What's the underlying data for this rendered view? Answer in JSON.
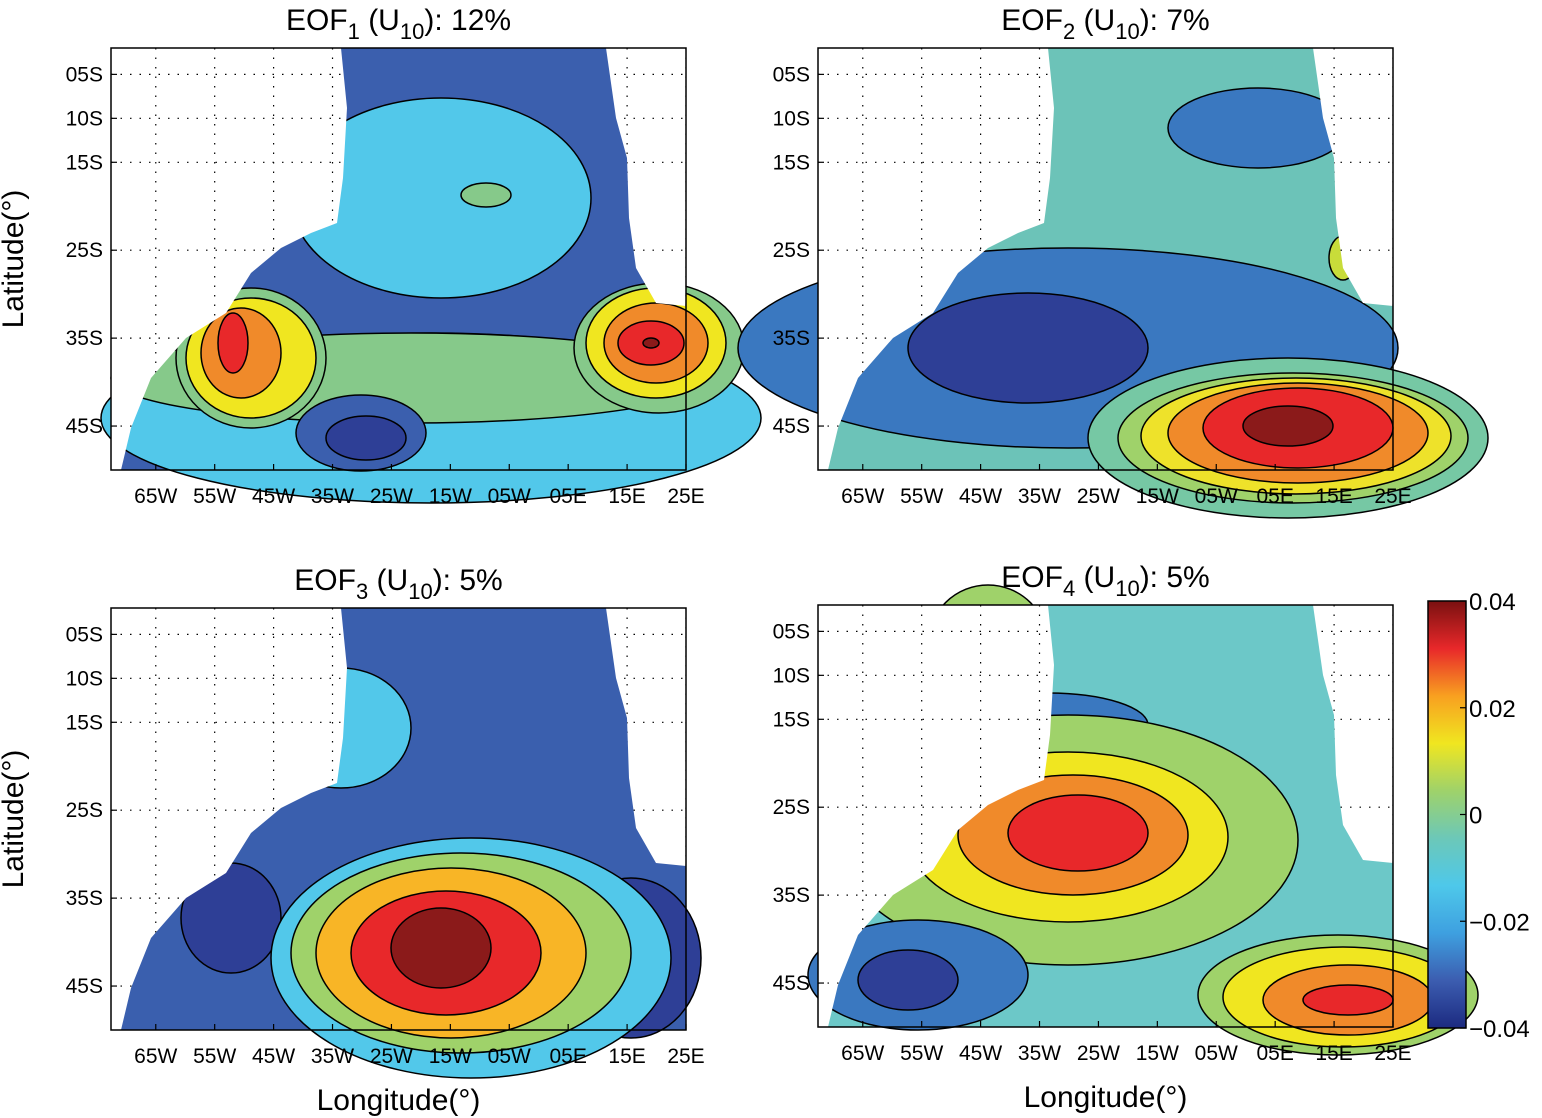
{
  "chart_data": [
    {
      "type": "contour",
      "title": [
        "EOF",
        "1",
        " (U",
        "10",
        "): 12%"
      ],
      "ylabel": "Latitude(°)",
      "xlim": [
        -72.6,
        25
      ],
      "ylim": [
        -2,
        -50
      ],
      "grid": true,
      "xticks": [
        {
          "value": -65,
          "label": "65W"
        },
        {
          "value": -55,
          "label": "55W"
        },
        {
          "value": -45,
          "label": "45W"
        },
        {
          "value": -35,
          "label": "35W"
        },
        {
          "value": -25,
          "label": "25W"
        },
        {
          "value": -15,
          "label": "15W"
        },
        {
          "value": -5,
          "label": "05W"
        },
        {
          "value": 5,
          "label": "05E"
        },
        {
          "value": 15,
          "label": "15E"
        },
        {
          "value": 25,
          "label": "25E"
        }
      ],
      "yticks": [
        {
          "value": -5,
          "label": "05S"
        },
        {
          "value": -10,
          "label": "10S"
        },
        {
          "value": -15,
          "label": "15S"
        },
        {
          "value": -25,
          "label": "25S"
        },
        {
          "value": -35,
          "label": "35S"
        },
        {
          "value": -45,
          "label": "45S"
        }
      ]
    },
    {
      "type": "contour",
      "title": [
        "EOF",
        "2",
        " (U",
        "10",
        "): 7%"
      ],
      "xlim": [
        -72.6,
        25
      ],
      "ylim": [
        -2,
        -50
      ],
      "grid": true,
      "xticks": [
        {
          "value": -65,
          "label": "65W"
        },
        {
          "value": -55,
          "label": "55W"
        },
        {
          "value": -45,
          "label": "45W"
        },
        {
          "value": -35,
          "label": "35W"
        },
        {
          "value": -25,
          "label": "25W"
        },
        {
          "value": -15,
          "label": "15W"
        },
        {
          "value": -5,
          "label": "05W"
        },
        {
          "value": 5,
          "label": "05E"
        },
        {
          "value": 15,
          "label": "15E"
        },
        {
          "value": 25,
          "label": "25E"
        }
      ],
      "yticks": [
        {
          "value": -5,
          "label": "05S"
        },
        {
          "value": -10,
          "label": "10S"
        },
        {
          "value": -15,
          "label": "15S"
        },
        {
          "value": -25,
          "label": "25S"
        },
        {
          "value": -35,
          "label": "35S"
        },
        {
          "value": -45,
          "label": "45S"
        }
      ]
    },
    {
      "type": "contour",
      "title": [
        "EOF",
        "3",
        " (U",
        "10",
        "): 5%"
      ],
      "ylabel": "Latitude(°)",
      "xlabel": "Longitude(°)",
      "xlim": [
        -72.6,
        25
      ],
      "ylim": [
        -2,
        -50
      ],
      "grid": true,
      "xticks": [
        {
          "value": -65,
          "label": "65W"
        },
        {
          "value": -55,
          "label": "55W"
        },
        {
          "value": -45,
          "label": "45W"
        },
        {
          "value": -35,
          "label": "35W"
        },
        {
          "value": -25,
          "label": "25W"
        },
        {
          "value": -15,
          "label": "15W"
        },
        {
          "value": -5,
          "label": "05W"
        },
        {
          "value": 5,
          "label": "05E"
        },
        {
          "value": 15,
          "label": "15E"
        },
        {
          "value": 25,
          "label": "25E"
        }
      ],
      "yticks": [
        {
          "value": -5,
          "label": "05S"
        },
        {
          "value": -10,
          "label": "10S"
        },
        {
          "value": -15,
          "label": "15S"
        },
        {
          "value": -25,
          "label": "25S"
        },
        {
          "value": -35,
          "label": "35S"
        },
        {
          "value": -45,
          "label": "45S"
        }
      ]
    },
    {
      "type": "contour",
      "title": [
        "EOF",
        "4",
        " (U",
        "10",
        "): 5%"
      ],
      "xlabel": "Longitude(°)",
      "xlim": [
        -72.6,
        25
      ],
      "ylim": [
        -2,
        -50
      ],
      "grid": true,
      "xticks": [
        {
          "value": -65,
          "label": "65W"
        },
        {
          "value": -55,
          "label": "55W"
        },
        {
          "value": -45,
          "label": "45W"
        },
        {
          "value": -35,
          "label": "35W"
        },
        {
          "value": -25,
          "label": "25W"
        },
        {
          "value": -15,
          "label": "15W"
        },
        {
          "value": -5,
          "label": "05W"
        },
        {
          "value": 5,
          "label": "05E"
        },
        {
          "value": 15,
          "label": "15E"
        },
        {
          "value": 25,
          "label": "25E"
        }
      ],
      "yticks": [
        {
          "value": -5,
          "label": "05S"
        },
        {
          "value": -10,
          "label": "10S"
        },
        {
          "value": -15,
          "label": "15S"
        },
        {
          "value": -25,
          "label": "25S"
        },
        {
          "value": -35,
          "label": "35S"
        },
        {
          "value": -45,
          "label": "45S"
        }
      ]
    }
  ],
  "colorbar": {
    "ylim": [
      -0.04,
      0.04
    ],
    "yticks": [
      0.04,
      0.02,
      0,
      {
        "value": -0.02,
        "label": "−0.02"
      },
      {
        "value": -0.04,
        "label": "−0.04"
      }
    ],
    "colors": [
      "#1c2a80",
      "#3c5db0",
      "#3ea0e0",
      "#4ec8ea",
      "#6cc8b8",
      "#9fd26a",
      "#f0e620",
      "#f8a020",
      "#e8282a",
      "#7a1010"
    ]
  }
}
